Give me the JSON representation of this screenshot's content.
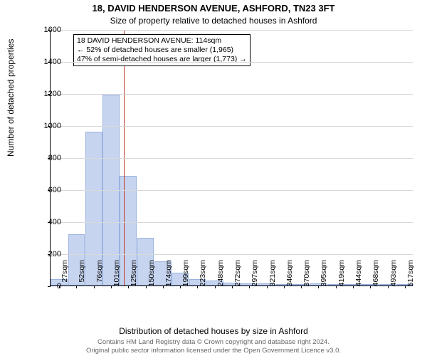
{
  "title_main": "18, DAVID HENDERSON AVENUE, ASHFORD, TN23 3FT",
  "title_sub": "Size of property relative to detached houses in Ashford",
  "y_label": "Number of detached properties",
  "x_label": "Distribution of detached houses by size in Ashford",
  "footer_line1": "Contains HM Land Registry data © Crown copyright and database right 2024.",
  "footer_line2": "Original public sector information licensed under the Open Government Licence v3.0.",
  "annotation": {
    "line1": "18 DAVID HENDERSON AVENUE: 114sqm",
    "line2": "← 52% of detached houses are smaller (1,965)",
    "line3": "47% of semi-detached houses are larger (1,773) →"
  },
  "chart": {
    "type": "histogram",
    "ylim": [
      0,
      1600
    ],
    "ytick_step": 200,
    "yticks": [
      0,
      200,
      400,
      600,
      800,
      1000,
      1200,
      1400,
      1600
    ],
    "xticks": [
      "27sqm",
      "52sqm",
      "76sqm",
      "101sqm",
      "125sqm",
      "150sqm",
      "174sqm",
      "199sqm",
      "223sqm",
      "248sqm",
      "272sqm",
      "297sqm",
      "321sqm",
      "346sqm",
      "370sqm",
      "395sqm",
      "419sqm",
      "444sqm",
      "468sqm",
      "493sqm",
      "517sqm"
    ],
    "values": [
      40,
      320,
      960,
      1190,
      685,
      300,
      150,
      80,
      40,
      30,
      20,
      15,
      12,
      8,
      6,
      12,
      4,
      2,
      2,
      1,
      1
    ],
    "bar_color": "#c6d4ef",
    "bar_border_color": "#9bb3e0",
    "grid_color": "#d8d8d8",
    "background_color": "#ffffff",
    "marker_color": "#c0392b",
    "marker_value_sqm": 114,
    "x_range_sqm": [
      27,
      517
    ]
  }
}
